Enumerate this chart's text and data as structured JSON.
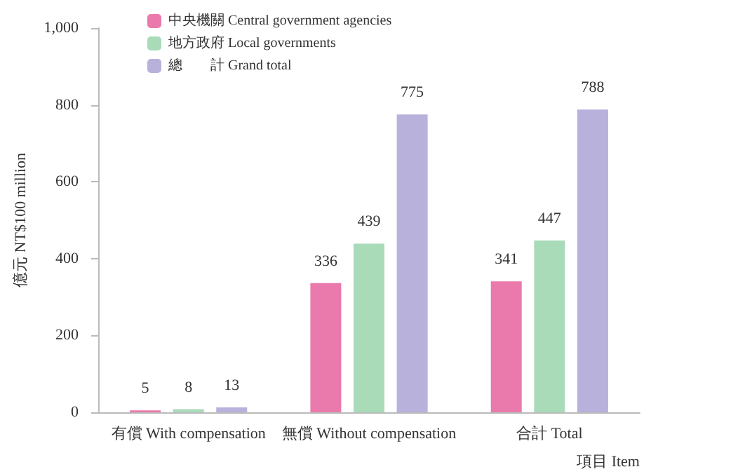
{
  "chart_data": {
    "type": "bar",
    "ylabel": "億元 NT$100 million",
    "xlabel": "項目 Item",
    "categories": [
      "有償 With compensation",
      "無償 Without compensation",
      "合計 Total"
    ],
    "series": [
      {
        "name": "中央機關 Central government agencies",
        "color": "#ea7aab",
        "values": [
          5,
          336,
          341
        ]
      },
      {
        "name": "地方政府 Local governments",
        "color": "#a9dbb9",
        "values": [
          8,
          439,
          447
        ]
      },
      {
        "name": "總　　計 Grand total",
        "color": "#b8b1dc",
        "values": [
          13,
          775,
          788
        ]
      }
    ],
    "ylim": [
      0,
      1000
    ],
    "yticks": [
      0,
      200,
      400,
      600,
      800,
      {
        "value": 1000,
        "label": "1,000"
      }
    ],
    "grid": false,
    "legend": "top left",
    "data_labels": true
  }
}
